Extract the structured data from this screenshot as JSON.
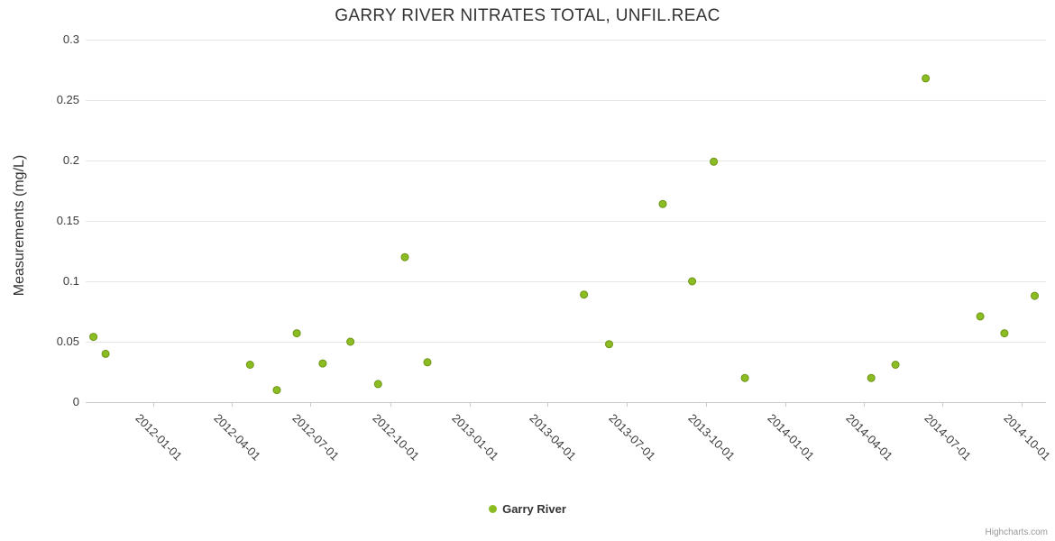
{
  "chart": {
    "title": "GARRY RIVER NITRATES TOTAL, UNFIL.REAC",
    "y_axis_title": "Measurements (mg/L)",
    "legend": {
      "series_label": "Garry River"
    },
    "credit": "Highcharts.com",
    "colors": {
      "series": "#8bbc21",
      "series_stroke": "#6d9417",
      "gridline": "#e6e6e6",
      "axis_line": "#c9c9c9",
      "title_text": "#333333",
      "tick_label_text": "#3c3c3c",
      "credit_text": "#999999"
    }
  },
  "chart_data": {
    "type": "scatter",
    "title": "GARRY RIVER NITRATES TOTAL, UNFIL.REAC",
    "xlabel": "",
    "ylabel": "Measurements (mg/L)",
    "x_type": "datetime",
    "grid": "horizontal-only",
    "legend_position": "bottom-center",
    "xlim": [
      "2011-10-15",
      "2014-10-29"
    ],
    "ylim": [
      0,
      0.3
    ],
    "y_ticks": [
      0,
      0.05,
      0.1,
      0.15,
      0.2,
      0.25,
      0.3
    ],
    "x_tick_labels": [
      "2012-01-01",
      "2012-04-01",
      "2012-07-01",
      "2012-10-01",
      "2013-01-01",
      "2013-04-01",
      "2013-07-01",
      "2013-10-01",
      "2014-01-01",
      "2014-04-01",
      "2014-07-01",
      "2014-10-01"
    ],
    "series": [
      {
        "name": "Garry River",
        "color": "#8bbc21",
        "marker": "circle",
        "points": [
          {
            "x": "2011-10-24",
            "y": 0.054
          },
          {
            "x": "2011-11-07",
            "y": 0.04
          },
          {
            "x": "2012-04-22",
            "y": 0.031
          },
          {
            "x": "2012-05-23",
            "y": 0.01
          },
          {
            "x": "2012-06-15",
            "y": 0.057
          },
          {
            "x": "2012-07-15",
            "y": 0.032
          },
          {
            "x": "2012-08-16",
            "y": 0.05
          },
          {
            "x": "2012-09-17",
            "y": 0.015
          },
          {
            "x": "2012-10-18",
            "y": 0.12
          },
          {
            "x": "2012-11-13",
            "y": 0.033
          },
          {
            "x": "2013-05-13",
            "y": 0.089
          },
          {
            "x": "2013-06-11",
            "y": 0.048
          },
          {
            "x": "2013-08-12",
            "y": 0.164
          },
          {
            "x": "2013-09-15",
            "y": 0.1
          },
          {
            "x": "2013-10-10",
            "y": 0.199
          },
          {
            "x": "2013-11-15",
            "y": 0.02
          },
          {
            "x": "2014-04-10",
            "y": 0.02
          },
          {
            "x": "2014-05-08",
            "y": 0.031
          },
          {
            "x": "2014-06-12",
            "y": 0.268
          },
          {
            "x": "2014-08-14",
            "y": 0.071
          },
          {
            "x": "2014-09-11",
            "y": 0.057
          },
          {
            "x": "2014-10-16",
            "y": 0.088
          }
        ]
      }
    ]
  }
}
